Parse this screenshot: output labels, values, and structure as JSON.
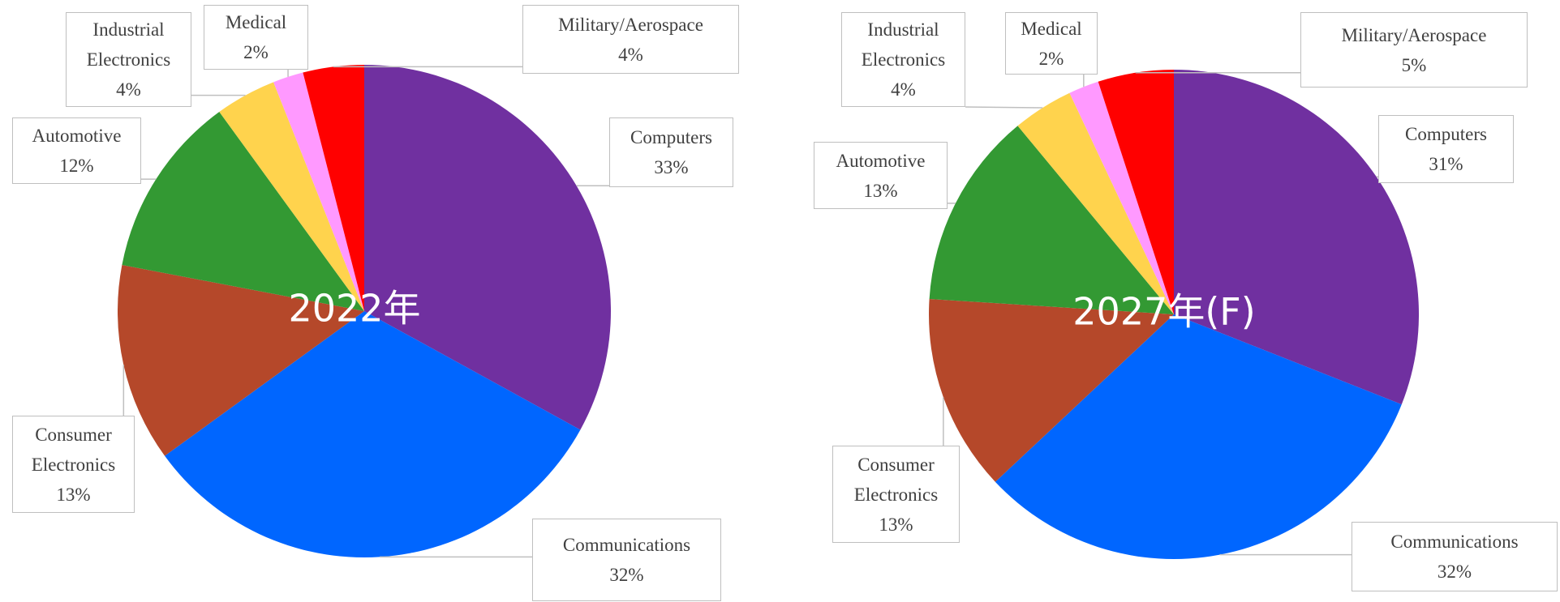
{
  "chart_data": [
    {
      "type": "pie",
      "title": "2022年",
      "categories": [
        "Computers",
        "Communications",
        "Consumer Electronics",
        "Automotive",
        "Industrial Electronics",
        "Medical",
        "Military/Aerospace"
      ],
      "values": [
        33,
        32,
        13,
        12,
        4,
        2,
        4
      ],
      "value_labels": [
        "33%",
        "32%",
        "13%",
        "12%",
        "4%",
        "2%",
        "4%"
      ],
      "colors": [
        "#7030a0",
        "#0066ff",
        "#b5482a",
        "#339933",
        "#ffd34d",
        "#ff99ff",
        "#ff0000"
      ]
    },
    {
      "type": "pie",
      "title": "2027年(F)",
      "categories": [
        "Computers",
        "Communications",
        "Consumer Electronics",
        "Automotive",
        "Industrial Electronics",
        "Medical",
        "Military/Aerospace"
      ],
      "values": [
        31,
        32,
        13,
        13,
        4,
        2,
        5
      ],
      "value_labels": [
        "31%",
        "32%",
        "13%",
        "13%",
        "4%",
        "2%",
        "5%"
      ],
      "colors": [
        "#7030a0",
        "#0066ff",
        "#b5482a",
        "#339933",
        "#ffd34d",
        "#ff99ff",
        "#ff0000"
      ]
    }
  ]
}
